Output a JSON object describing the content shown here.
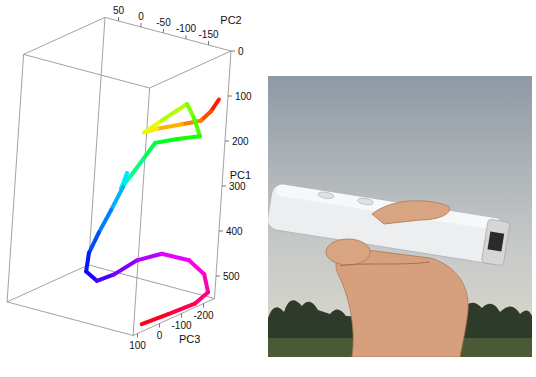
{
  "chart_data": {
    "type": "line3d",
    "x_label": "PC1",
    "y_label": "PC2",
    "z_label": "PC3",
    "xlim": [
      0,
      550
    ],
    "xticks": [
      0,
      100,
      200,
      300,
      400,
      500
    ],
    "ylim": [
      -200,
      80
    ],
    "yticks": [
      50,
      0,
      -50,
      -100,
      -150
    ],
    "zlim": [
      -250,
      120
    ],
    "zticks": [
      -200,
      -100,
      0,
      100
    ],
    "series": [
      {
        "x": [
          106,
          133,
          156,
          171,
          192,
          204,
          171,
          124,
          150,
          187,
          199,
          217,
          256,
          296,
          326,
          289,
          318,
          372,
          425,
          472,
          507,
          514,
          490,
          453,
          438,
          464,
          503,
          540,
          545,
          545,
          548
        ],
        "y": [
          -190,
          -179,
          -163,
          -127,
          -78,
          -55,
          -87,
          -135,
          -152,
          -168,
          -128,
          -85,
          -66,
          -46,
          -31,
          -42,
          -40,
          -22,
          -3,
          11,
          5,
          -29,
          -66,
          -104,
          -139,
          -162,
          -174,
          -185,
          -195,
          -190,
          -180
        ],
        "z": [
          -230,
          -220,
          -210,
          -200,
          -190,
          -180,
          -190,
          -200,
          -200,
          -200,
          -180,
          -170,
          -160,
          -150,
          -140,
          -140,
          -130,
          -120,
          -110,
          -100,
          -80,
          -60,
          -60,
          -80,
          -120,
          -200,
          -250,
          -250,
          -170,
          -60,
          40
        ]
      }
    ]
  }
}
